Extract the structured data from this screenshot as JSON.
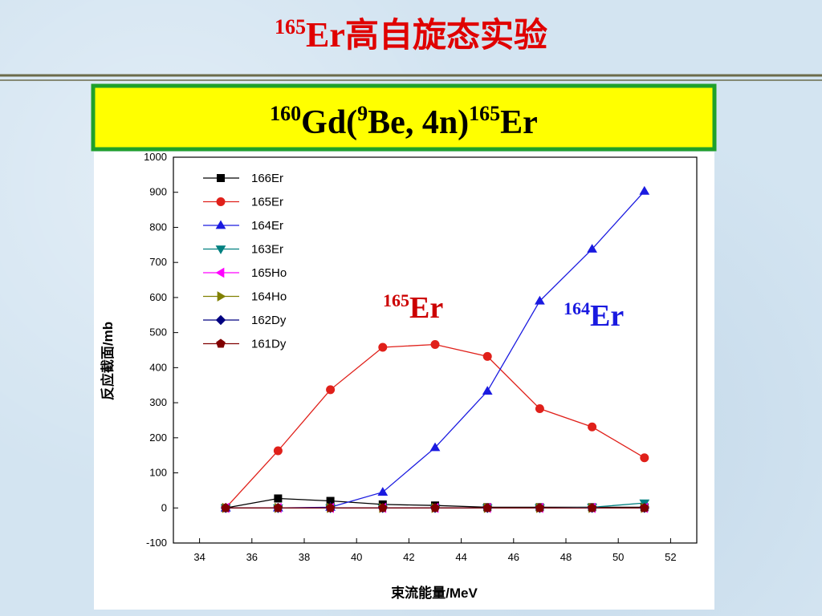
{
  "title": {
    "sup": "165",
    "main": "Er",
    "cjk": "高自旋态实验"
  },
  "subtitle": {
    "sup1": "160",
    "part1": "Gd(",
    "sup2": "9",
    "part2": "Be, 4n)",
    "sup3": "165",
    "part3": "Er"
  },
  "chart_data": {
    "type": "line",
    "x_label": "束流能量/MeV",
    "y_label": "反应截面/mb",
    "x": [
      35,
      37,
      39,
      41,
      43,
      45,
      47,
      49,
      51
    ],
    "xlim": [
      33,
      53
    ],
    "ylim": [
      -100,
      1000
    ],
    "xticks": [
      34,
      36,
      38,
      40,
      42,
      44,
      46,
      48,
      50,
      52
    ],
    "yticks": [
      -100,
      0,
      100,
      200,
      300,
      400,
      500,
      600,
      700,
      800,
      900,
      1000
    ],
    "series": [
      {
        "name": "166Er",
        "color": "#000000",
        "marker": "square",
        "values": [
          0,
          27,
          20,
          10,
          7,
          2,
          2,
          2,
          2
        ]
      },
      {
        "name": "165Er",
        "color": "#e0201a",
        "marker": "circle",
        "values": [
          0,
          163,
          337,
          458,
          466,
          432,
          283,
          231,
          143
        ]
      },
      {
        "name": "164Er",
        "color": "#1a1ae0",
        "marker": "triangle-up",
        "values": [
          0,
          0,
          2,
          45,
          172,
          333,
          590,
          738,
          903
        ]
      },
      {
        "name": "163Er",
        "color": "#008080",
        "marker": "triangle-down",
        "values": [
          0,
          0,
          0,
          0,
          0,
          0,
          0,
          2,
          14
        ]
      },
      {
        "name": "165Ho",
        "color": "#ff00ff",
        "marker": "triangle-left",
        "values": [
          0,
          0,
          0,
          0,
          0,
          0,
          0,
          0,
          0
        ]
      },
      {
        "name": "164Ho",
        "color": "#808000",
        "marker": "triangle-right",
        "values": [
          0,
          0,
          0,
          0,
          0,
          0,
          0,
          0,
          0
        ]
      },
      {
        "name": "162Dy",
        "color": "#000080",
        "marker": "diamond",
        "values": [
          0,
          0,
          0,
          0,
          0,
          0,
          0,
          0,
          0
        ]
      },
      {
        "name": "161Dy",
        "color": "#800000",
        "marker": "pentagon",
        "values": [
          0,
          0,
          0,
          0,
          0,
          0,
          0,
          0,
          0
        ]
      }
    ],
    "annotations": [
      {
        "sup": "165",
        "text": "Er",
        "color": "#cc0000"
      },
      {
        "sup": "164",
        "text": "Er",
        "color": "#1a1ae0"
      }
    ]
  }
}
